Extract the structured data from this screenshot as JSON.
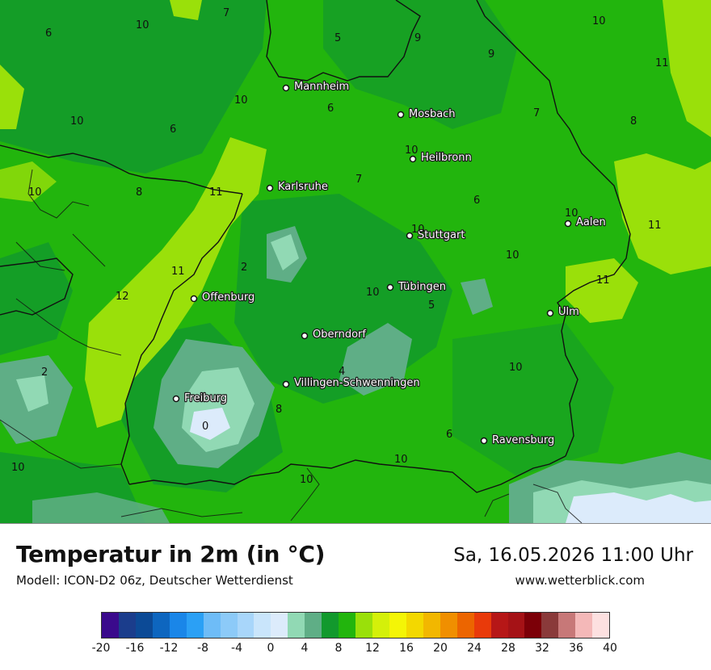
{
  "footer": {
    "title": "Temperatur in 2m (in °C)",
    "model": "Modell: ICON-D2 06z, Deutscher Wetterdienst",
    "datetime": "Sa, 16.05.2026 11:00 Uhr",
    "website": "www.wetterblick.com"
  },
  "legend": {
    "colors": [
      "#3a0a8c",
      "#1b3d8c",
      "#0c4a96",
      "#0e66bf",
      "#1a86e8",
      "#2ba0f5",
      "#6ebcf7",
      "#8ccaf8",
      "#a8d6fa",
      "#c9e5fb",
      "#dcebfb",
      "#91d9b4",
      "#5fae86",
      "#12992d",
      "#22b50d",
      "#9ae00a",
      "#d4f00a",
      "#f4f506",
      "#f3d800",
      "#f2b700",
      "#f08f00",
      "#ec6500",
      "#e93a0a",
      "#b61717",
      "#a51216",
      "#7c0008",
      "#8a3a3a",
      "#c77878",
      "#f4b8b8",
      "#fde0e0"
    ],
    "labels": [
      "-20",
      "-16",
      "-12",
      "-8",
      "-4",
      "0",
      "4",
      "8",
      "12",
      "16",
      "20",
      "24",
      "28",
      "32",
      "36",
      "40"
    ]
  },
  "cities": [
    {
      "name": "Mannheim"
    },
    {
      "name": "Mosbach"
    },
    {
      "name": "Heilbronn"
    },
    {
      "name": "Karlsruhe"
    },
    {
      "name": "Stuttgart"
    },
    {
      "name": "Aalen"
    },
    {
      "name": "Tübingen"
    },
    {
      "name": "Offenburg"
    },
    {
      "name": "Ulm"
    },
    {
      "name": "Oberndorf"
    },
    {
      "name": "Villingen-Schwenningen"
    },
    {
      "name": "Freiburg"
    },
    {
      "name": "Ravensburg"
    }
  ],
  "temperature_labels": [
    "7",
    "10",
    "6",
    "5",
    "9",
    "10",
    "9",
    "11",
    "10",
    "6",
    "10",
    "6",
    "7",
    "8",
    "10",
    "10",
    "8",
    "11",
    "7",
    "6",
    "10",
    "10",
    "11",
    "2",
    "11",
    "12",
    "10",
    "10",
    "5",
    "11",
    "2",
    "4",
    "10",
    "8",
    "0",
    "6",
    "10",
    "10",
    "10"
  ]
}
